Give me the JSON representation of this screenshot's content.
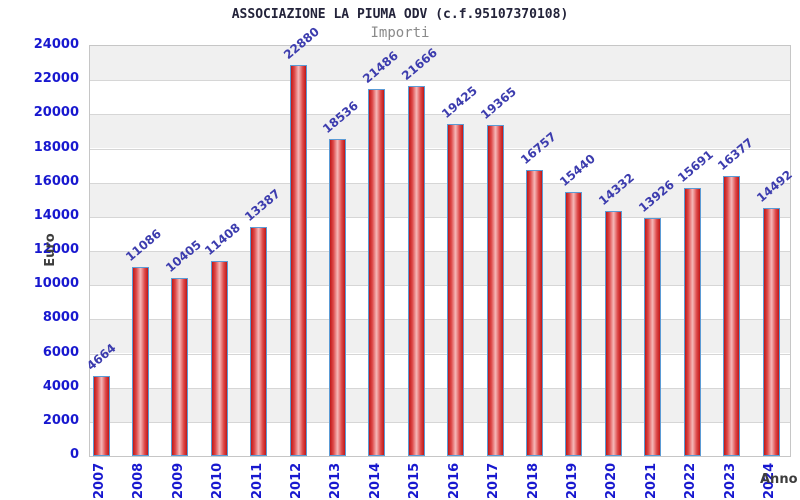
{
  "header": {
    "title": "ASSOCIAZIONE LA PIUMA ODV (c.f.95107370108)",
    "subtitle": "Importi"
  },
  "chart_data": {
    "type": "bar",
    "title": "ASSOCIAZIONE LA PIUMA ODV (c.f.95107370108)",
    "subtitle": "Importi",
    "xlabel": "Anno",
    "ylabel": "Euro",
    "categories": [
      "2007",
      "2008",
      "2009",
      "2010",
      "2011",
      "2012",
      "2013",
      "2014",
      "2015",
      "2016",
      "2017",
      "2018",
      "2019",
      "2020",
      "2021",
      "2022",
      "2023",
      "2024"
    ],
    "values": [
      4664,
      11086,
      10405,
      11408,
      13387,
      22880,
      18536,
      21486,
      21666,
      19425,
      19365,
      16757,
      15440,
      14332,
      13926,
      15691,
      16377,
      14492
    ],
    "ylim": [
      0,
      24000
    ],
    "ytick_step": 2000,
    "grid": true,
    "legend": "none",
    "band_colors": [
      "#f0f0f0",
      "#ffffff"
    ],
    "colors": {
      "bar_fill_edge": "#c01818",
      "bar_fill_center": "#f6b9b9",
      "bar_border": "#5b9bd5",
      "tick_label": "#1818cf",
      "value_label": "#3c3cae",
      "axis_title": "#3d3d3d",
      "title": "#23233a",
      "subtitle": "#8a8a8a",
      "gridline": "#d6d6d6"
    }
  }
}
